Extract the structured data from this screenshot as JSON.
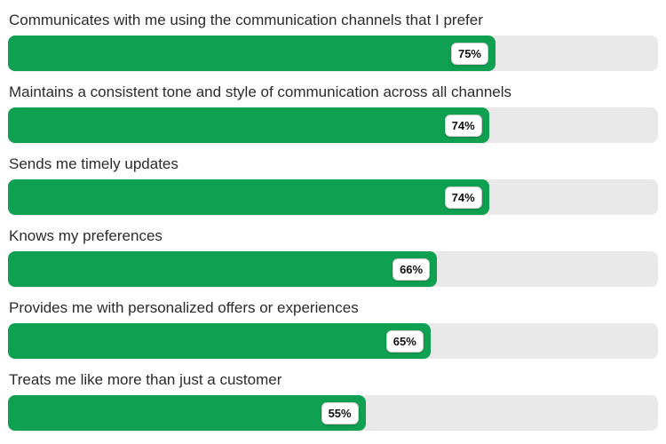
{
  "chart_data": {
    "type": "bar",
    "orientation": "horizontal",
    "categories": [
      "Communicates with me using the communication channels that I prefer",
      "Maintains a consistent tone and style of communication across all channels",
      "Sends me timely updates",
      "Knows my preferences",
      "Provides me with personalized offers or experiences",
      "Treats me like more than just a customer"
    ],
    "values": [
      75,
      74,
      74,
      66,
      65,
      55
    ],
    "value_labels": [
      "75%",
      "74%",
      "74%",
      "66%",
      "65%",
      "55%"
    ],
    "xlim": [
      0,
      100
    ],
    "grid": false,
    "legend": false,
    "colors": {
      "bar": "#10a052",
      "track": "#e9e9e9",
      "label_text": "#2b2b2b",
      "badge_bg": "#ffffff",
      "badge_border": "#cfcfcf",
      "badge_text": "#111111"
    }
  }
}
